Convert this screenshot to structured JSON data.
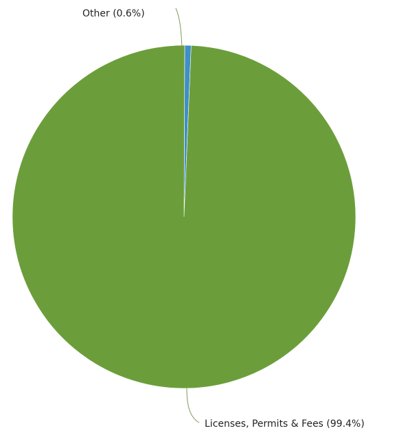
{
  "chart_data": {
    "type": "pie",
    "title": "",
    "slices": [
      {
        "label": "Licenses, Permits & Fees (99.4%)",
        "name": "Licenses, Permits & Fees",
        "value": 99.4,
        "color": "#6b9e3a"
      },
      {
        "label": "Other (0.6%)",
        "name": "Other",
        "value": 0.6,
        "color": "#3f8fc8"
      }
    ],
    "legend": "none",
    "leader_line_color": "#7a9a5a"
  }
}
